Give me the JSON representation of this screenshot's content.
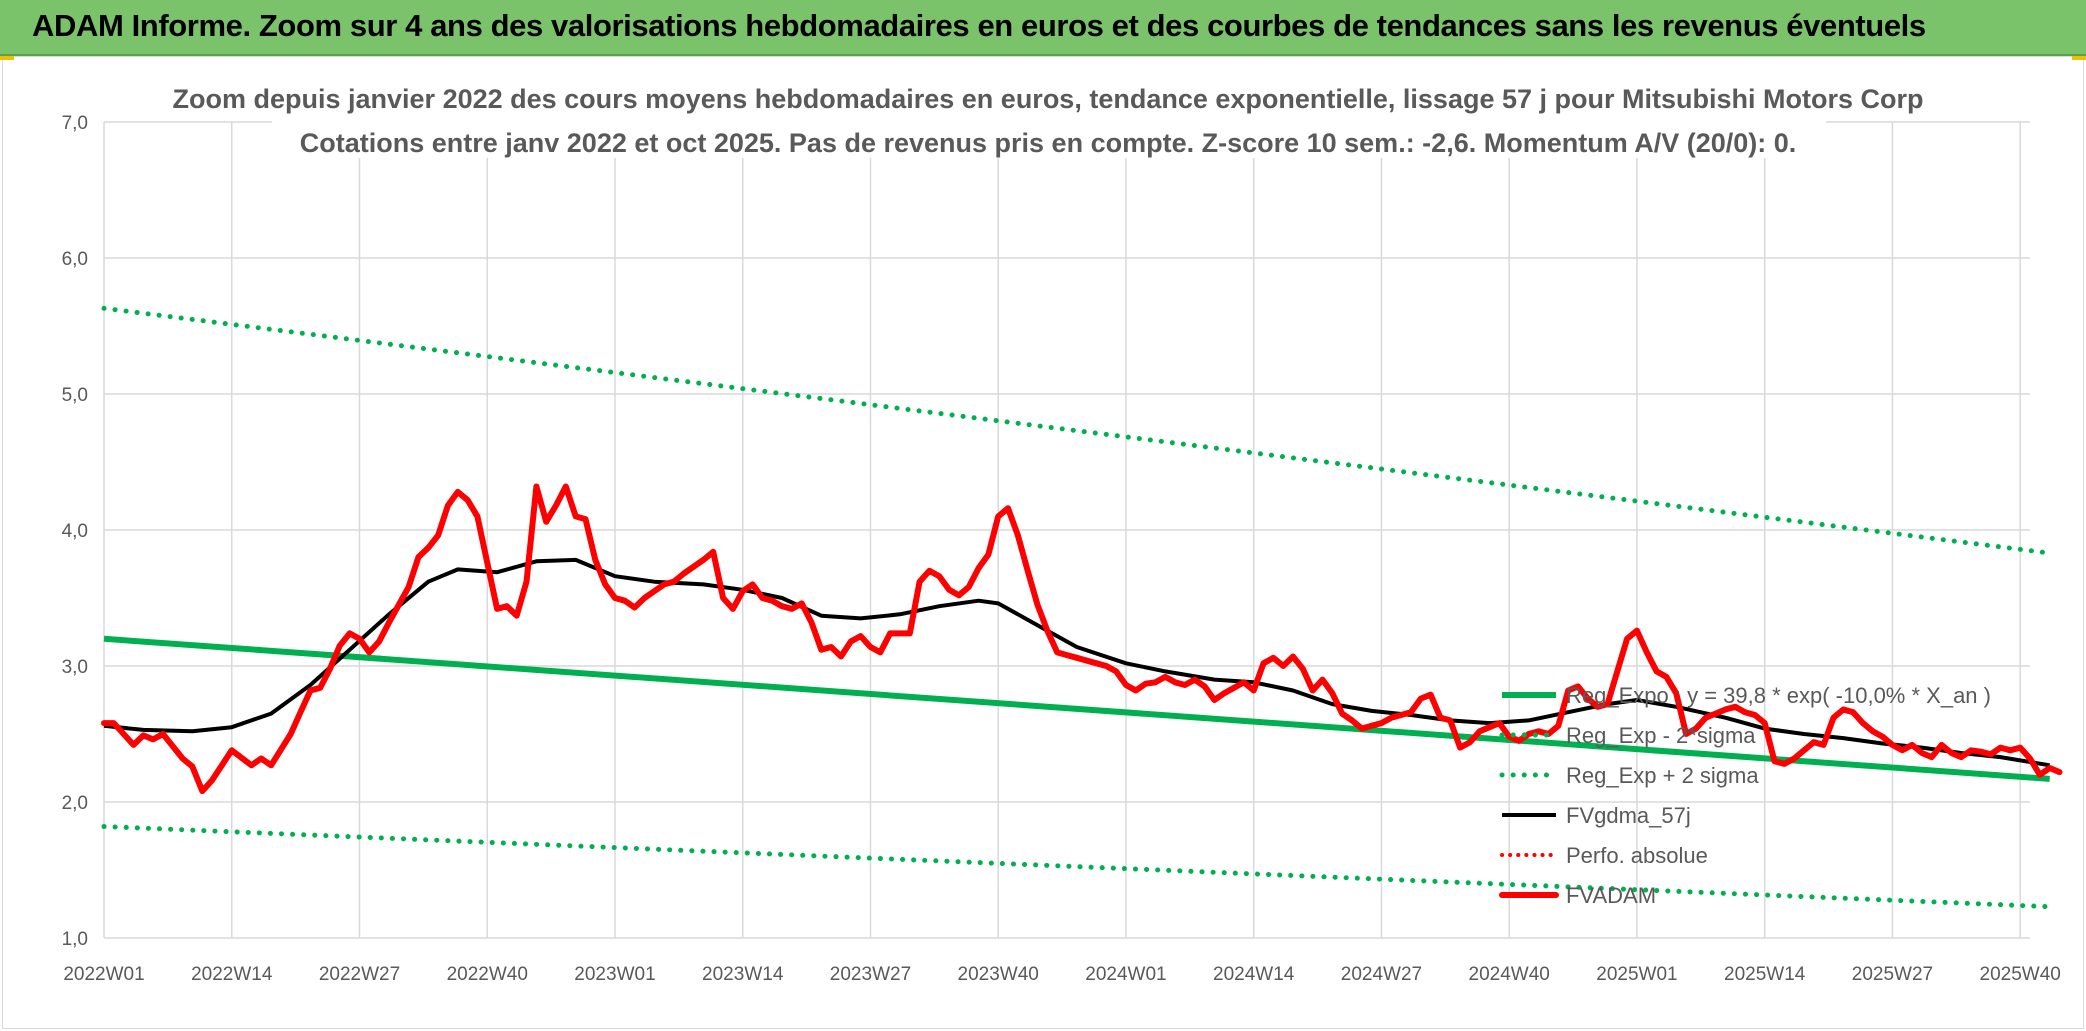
{
  "banner": {
    "title": "ADAM Informe. Zoom sur 4 ans des valorisations hebdomadaires en euros et des courbes de tendances sans les revenus éventuels"
  },
  "colors": {
    "banner_bg": "#7ac36a",
    "trend": "#00b050",
    "price": "#ff0000",
    "moving_average": "#000000",
    "grid": "#d9d9d9",
    "text": "#595959"
  },
  "chart_data": {
    "type": "line",
    "title": "Zoom depuis janvier 2022 des cours moyens hebdomadaires en euros, tendance exponentielle, lissage 57 j pour Mitsubishi Motors Corp",
    "subtitle": "Cotations entre janv 2022 et oct 2025. Pas de revenus pris en compte. Z-score 10 sem.: -2,6. Momentum A/V (20/0): 0.",
    "xlabel": "",
    "ylabel": "",
    "ylim": [
      1.0,
      7.0
    ],
    "yticks": [
      "1,0",
      "2,0",
      "3,0",
      "4,0",
      "5,0",
      "6,0",
      "7,0"
    ],
    "x_ticks": [
      "2022W01",
      "2022W14",
      "2022W27",
      "2022W40",
      "2023W01",
      "2023W14",
      "2023W27",
      "2023W40",
      "2024W01",
      "2024W14",
      "2024W27",
      "2024W40",
      "2025W01",
      "2025W14",
      "2025W27",
      "2025W40"
    ],
    "grid": true,
    "legend_position": "bottom-right",
    "series": [
      {
        "name": "Reg_Expo : y = 39,8 * exp( -10,0% * X_an )",
        "style": "solid-green",
        "points": [
          [
            "2022W01",
            3.2
          ],
          [
            "2025W43",
            2.17
          ]
        ]
      },
      {
        "name": "Reg_Exp - 2*sigma",
        "style": "dotted-green",
        "points": [
          [
            "2022W01",
            1.82
          ],
          [
            "2025W43",
            1.23
          ]
        ]
      },
      {
        "name": "Reg_Exp + 2 sigma",
        "style": "dotted-green",
        "points": [
          [
            "2022W01",
            5.63
          ],
          [
            "2025W43",
            3.83
          ]
        ]
      },
      {
        "name": "FVgdma_57j",
        "style": "solid-black",
        "points": [
          [
            "2022W01",
            2.56
          ],
          [
            "2022W05",
            2.53
          ],
          [
            "2022W10",
            2.52
          ],
          [
            "2022W14",
            2.55
          ],
          [
            "2022W18",
            2.65
          ],
          [
            "2022W22",
            2.86
          ],
          [
            "2022W26",
            3.12
          ],
          [
            "2022W30",
            3.38
          ],
          [
            "2022W34",
            3.62
          ],
          [
            "2022W37",
            3.71
          ],
          [
            "2022W41",
            3.69
          ],
          [
            "2022W45",
            3.77
          ],
          [
            "2022W49",
            3.78
          ],
          [
            "2023W01",
            3.66
          ],
          [
            "2023W05",
            3.62
          ],
          [
            "2023W10",
            3.6
          ],
          [
            "2023W14",
            3.56
          ],
          [
            "2023W18",
            3.5
          ],
          [
            "2023W22",
            3.37
          ],
          [
            "2023W26",
            3.35
          ],
          [
            "2023W30",
            3.38
          ],
          [
            "2023W34",
            3.44
          ],
          [
            "2023W38",
            3.48
          ],
          [
            "2023W40",
            3.46
          ],
          [
            "2023W44",
            3.3
          ],
          [
            "2023W48",
            3.14
          ],
          [
            "2024W01",
            3.02
          ],
          [
            "2024W05",
            2.96
          ],
          [
            "2024W10",
            2.9
          ],
          [
            "2024W14",
            2.88
          ],
          [
            "2024W18",
            2.82
          ],
          [
            "2024W22",
            2.72
          ],
          [
            "2024W26",
            2.67
          ],
          [
            "2024W30",
            2.64
          ],
          [
            "2024W34",
            2.6
          ],
          [
            "2024W38",
            2.58
          ],
          [
            "2024W42",
            2.6
          ],
          [
            "2024W46",
            2.66
          ],
          [
            "2024W50",
            2.72
          ],
          [
            "2025W01",
            2.75
          ],
          [
            "2025W05",
            2.7
          ],
          [
            "2025W10",
            2.62
          ],
          [
            "2025W14",
            2.54
          ],
          [
            "2025W18",
            2.5
          ],
          [
            "2025W22",
            2.47
          ],
          [
            "2025W26",
            2.43
          ],
          [
            "2025W30",
            2.4
          ],
          [
            "2025W34",
            2.36
          ],
          [
            "2025W38",
            2.33
          ],
          [
            "2025W43",
            2.27
          ]
        ]
      },
      {
        "name": "Perfo. absolue",
        "style": "dotted-red",
        "points": []
      },
      {
        "name": "FVADAM",
        "style": "thick-red",
        "points": [
          [
            "2022W01",
            2.58
          ],
          [
            "2022W02",
            2.58
          ],
          [
            "2022W04",
            2.42
          ],
          [
            "2022W05",
            2.49
          ],
          [
            "2022W06",
            2.46
          ],
          [
            "2022W07",
            2.5
          ],
          [
            "2022W09",
            2.32
          ],
          [
            "2022W10",
            2.26
          ],
          [
            "2022W11",
            2.08
          ],
          [
            "2022W12",
            2.16
          ],
          [
            "2022W14",
            2.38
          ],
          [
            "2022W16",
            2.27
          ],
          [
            "2022W17",
            2.32
          ],
          [
            "2022W18",
            2.27
          ],
          [
            "2022W20",
            2.5
          ],
          [
            "2022W21",
            2.66
          ],
          [
            "2022W22",
            2.82
          ],
          [
            "2022W23",
            2.84
          ],
          [
            "2022W24",
            2.98
          ],
          [
            "2022W25",
            3.15
          ],
          [
            "2022W26",
            3.24
          ],
          [
            "2022W27",
            3.2
          ],
          [
            "2022W28",
            3.1
          ],
          [
            "2022W29",
            3.18
          ],
          [
            "2022W30",
            3.32
          ],
          [
            "2022W32",
            3.58
          ],
          [
            "2022W33",
            3.8
          ],
          [
            "2022W34",
            3.87
          ],
          [
            "2022W35",
            3.96
          ],
          [
            "2022W36",
            4.18
          ],
          [
            "2022W37",
            4.28
          ],
          [
            "2022W38",
            4.22
          ],
          [
            "2022W39",
            4.1
          ],
          [
            "2022W41",
            3.42
          ],
          [
            "2022W42",
            3.44
          ],
          [
            "2022W43",
            3.37
          ],
          [
            "2022W44",
            3.62
          ],
          [
            "2022W45",
            4.32
          ],
          [
            "2022W46",
            4.06
          ],
          [
            "2022W47",
            4.18
          ],
          [
            "2022W48",
            4.32
          ],
          [
            "2022W49",
            4.1
          ],
          [
            "2022W50",
            4.08
          ],
          [
            "2022W51",
            3.78
          ],
          [
            "2022W52",
            3.6
          ],
          [
            "2023W01",
            3.5
          ],
          [
            "2023W02",
            3.48
          ],
          [
            "2023W03",
            3.43
          ],
          [
            "2023W04",
            3.5
          ],
          [
            "2023W05",
            3.55
          ],
          [
            "2023W06",
            3.6
          ],
          [
            "2023W07",
            3.62
          ],
          [
            "2023W08",
            3.68
          ],
          [
            "2023W10",
            3.78
          ],
          [
            "2023W11",
            3.84
          ],
          [
            "2023W12",
            3.5
          ],
          [
            "2023W13",
            3.42
          ],
          [
            "2023W14",
            3.55
          ],
          [
            "2023W15",
            3.6
          ],
          [
            "2023W16",
            3.5
          ],
          [
            "2023W17",
            3.48
          ],
          [
            "2023W18",
            3.44
          ],
          [
            "2023W19",
            3.42
          ],
          [
            "2023W20",
            3.46
          ],
          [
            "2023W21",
            3.32
          ],
          [
            "2023W22",
            3.12
          ],
          [
            "2023W23",
            3.14
          ],
          [
            "2023W24",
            3.07
          ],
          [
            "2023W25",
            3.18
          ],
          [
            "2023W26",
            3.22
          ],
          [
            "2023W27",
            3.14
          ],
          [
            "2023W28",
            3.1
          ],
          [
            "2023W29",
            3.24
          ],
          [
            "2023W30",
            3.24
          ],
          [
            "2023W31",
            3.24
          ],
          [
            "2023W32",
            3.62
          ],
          [
            "2023W33",
            3.7
          ],
          [
            "2023W34",
            3.66
          ],
          [
            "2023W35",
            3.56
          ],
          [
            "2023W36",
            3.52
          ],
          [
            "2023W37",
            3.58
          ],
          [
            "2023W38",
            3.72
          ],
          [
            "2023W39",
            3.82
          ],
          [
            "2023W40",
            4.1
          ],
          [
            "2023W41",
            4.16
          ],
          [
            "2023W42",
            3.96
          ],
          [
            "2023W43",
            3.7
          ],
          [
            "2023W44",
            3.45
          ],
          [
            "2023W45",
            3.26
          ],
          [
            "2023W46",
            3.1
          ],
          [
            "2023W47",
            3.08
          ],
          [
            "2023W48",
            3.06
          ],
          [
            "2023W49",
            3.04
          ],
          [
            "2023W50",
            3.02
          ],
          [
            "2023W51",
            3.0
          ],
          [
            "2023W52",
            2.96
          ],
          [
            "2024W01",
            2.86
          ],
          [
            "2024W02",
            2.82
          ],
          [
            "2024W03",
            2.87
          ],
          [
            "2024W04",
            2.88
          ],
          [
            "2024W05",
            2.92
          ],
          [
            "2024W06",
            2.88
          ],
          [
            "2024W07",
            2.86
          ],
          [
            "2024W08",
            2.9
          ],
          [
            "2024W09",
            2.85
          ],
          [
            "2024W10",
            2.75
          ],
          [
            "2024W11",
            2.8
          ],
          [
            "2024W12",
            2.84
          ],
          [
            "2024W13",
            2.88
          ],
          [
            "2024W14",
            2.82
          ],
          [
            "2024W15",
            3.02
          ],
          [
            "2024W16",
            3.06
          ],
          [
            "2024W17",
            3.0
          ],
          [
            "2024W18",
            3.07
          ],
          [
            "2024W19",
            2.98
          ],
          [
            "2024W20",
            2.82
          ],
          [
            "2024W21",
            2.9
          ],
          [
            "2024W22",
            2.8
          ],
          [
            "2024W23",
            2.65
          ],
          [
            "2024W24",
            2.6
          ],
          [
            "2024W25",
            2.54
          ],
          [
            "2024W26",
            2.56
          ],
          [
            "2024W27",
            2.58
          ],
          [
            "2024W28",
            2.62
          ],
          [
            "2024W29",
            2.64
          ],
          [
            "2024W30",
            2.66
          ],
          [
            "2024W31",
            2.76
          ],
          [
            "2024W32",
            2.79
          ],
          [
            "2024W33",
            2.62
          ],
          [
            "2024W34",
            2.6
          ],
          [
            "2024W35",
            2.4
          ],
          [
            "2024W36",
            2.44
          ],
          [
            "2024W37",
            2.52
          ],
          [
            "2024W38",
            2.55
          ],
          [
            "2024W39",
            2.58
          ],
          [
            "2024W40",
            2.48
          ],
          [
            "2024W41",
            2.45
          ],
          [
            "2024W42",
            2.5
          ],
          [
            "2024W43",
            2.52
          ],
          [
            "2024W44",
            2.5
          ],
          [
            "2024W45",
            2.56
          ],
          [
            "2024W46",
            2.82
          ],
          [
            "2024W47",
            2.85
          ],
          [
            "2024W48",
            2.76
          ],
          [
            "2024W49",
            2.7
          ],
          [
            "2024W50",
            2.72
          ],
          [
            "2024W51",
            2.96
          ],
          [
            "2024W52",
            3.2
          ],
          [
            "2025W01",
            3.26
          ],
          [
            "2025W02",
            3.1
          ],
          [
            "2025W03",
            2.96
          ],
          [
            "2025W04",
            2.92
          ],
          [
            "2025W05",
            2.8
          ],
          [
            "2025W06",
            2.5
          ],
          [
            "2025W07",
            2.54
          ],
          [
            "2025W08",
            2.62
          ],
          [
            "2025W09",
            2.65
          ],
          [
            "2025W10",
            2.68
          ],
          [
            "2025W11",
            2.7
          ],
          [
            "2025W12",
            2.66
          ],
          [
            "2025W13",
            2.64
          ],
          [
            "2025W14",
            2.58
          ],
          [
            "2025W15",
            2.3
          ],
          [
            "2025W16",
            2.28
          ],
          [
            "2025W17",
            2.32
          ],
          [
            "2025W18",
            2.38
          ],
          [
            "2025W19",
            2.44
          ],
          [
            "2025W20",
            2.42
          ],
          [
            "2025W21",
            2.62
          ],
          [
            "2025W22",
            2.68
          ],
          [
            "2025W23",
            2.66
          ],
          [
            "2025W24",
            2.58
          ],
          [
            "2025W25",
            2.52
          ],
          [
            "2025W26",
            2.48
          ],
          [
            "2025W27",
            2.42
          ],
          [
            "2025W28",
            2.38
          ],
          [
            "2025W29",
            2.42
          ],
          [
            "2025W30",
            2.36
          ],
          [
            "2025W31",
            2.33
          ],
          [
            "2025W32",
            2.42
          ],
          [
            "2025W33",
            2.36
          ],
          [
            "2025W34",
            2.33
          ],
          [
            "2025W35",
            2.38
          ],
          [
            "2025W36",
            2.37
          ],
          [
            "2025W37",
            2.35
          ],
          [
            "2025W38",
            2.4
          ],
          [
            "2025W39",
            2.38
          ],
          [
            "2025W40",
            2.4
          ],
          [
            "2025W41",
            2.32
          ],
          [
            "2025W42",
            2.2
          ],
          [
            "2025W43",
            2.25
          ],
          [
            "2025W44",
            2.22
          ]
        ]
      }
    ]
  }
}
